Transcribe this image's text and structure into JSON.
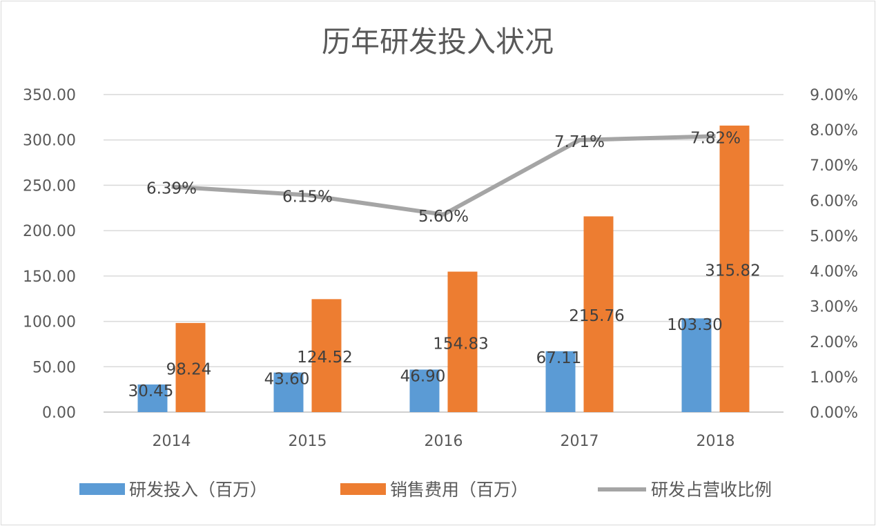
{
  "chart_data": {
    "type": "bar+line",
    "title": "历年研发投入状况",
    "categories": [
      "2014",
      "2015",
      "2016",
      "2017",
      "2018"
    ],
    "series": [
      {
        "name": "研发投入（百万）",
        "type": "bar",
        "axis": "left",
        "color": "#5B9BD5",
        "values": [
          30.45,
          43.6,
          46.9,
          67.11,
          103.3
        ],
        "labels": [
          "30.45",
          "43.60",
          "46.90",
          "67.11",
          "103.30"
        ]
      },
      {
        "name": "销售费用（百万）",
        "type": "bar",
        "axis": "left",
        "color": "#ED7D31",
        "values": [
          98.24,
          124.52,
          154.83,
          215.76,
          315.82
        ],
        "labels": [
          "98.24",
          "124.52",
          "154.83",
          "215.76",
          "315.82"
        ]
      },
      {
        "name": "研发占营收比例",
        "type": "line",
        "axis": "right",
        "color": "#A5A5A5",
        "values": [
          6.39,
          6.15,
          5.6,
          7.71,
          7.82
        ],
        "labels": [
          "6.39%",
          "6.15%",
          "5.60%",
          "7.71%",
          "7.82%"
        ]
      }
    ],
    "ylim": [
      0,
      350
    ],
    "yticks": [
      "0.00",
      "50.00",
      "100.00",
      "150.00",
      "200.00",
      "250.00",
      "300.00",
      "350.00"
    ],
    "y2lim": [
      0,
      9
    ],
    "y2ticks": [
      "0.00%",
      "1.00%",
      "2.00%",
      "3.00%",
      "4.00%",
      "5.00%",
      "6.00%",
      "7.00%",
      "8.00%",
      "9.00%"
    ],
    "grid": true,
    "legend_position": "bottom"
  }
}
